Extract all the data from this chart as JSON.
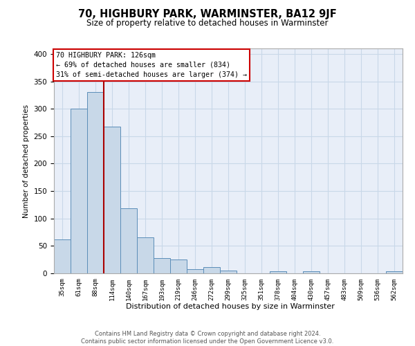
{
  "title1": "70, HIGHBURY PARK, WARMINSTER, BA12 9JF",
  "title2": "Size of property relative to detached houses in Warminster",
  "xlabel": "Distribution of detached houses by size in Warminster",
  "ylabel": "Number of detached properties",
  "bin_labels": [
    "35sqm",
    "61sqm",
    "88sqm",
    "114sqm",
    "140sqm",
    "167sqm",
    "193sqm",
    "219sqm",
    "246sqm",
    "272sqm",
    "299sqm",
    "325sqm",
    "351sqm",
    "378sqm",
    "404sqm",
    "430sqm",
    "457sqm",
    "483sqm",
    "509sqm",
    "536sqm",
    "562sqm"
  ],
  "bar_values": [
    62,
    300,
    330,
    268,
    118,
    65,
    28,
    25,
    8,
    11,
    5,
    0,
    0,
    4,
    0,
    4,
    0,
    0,
    0,
    0,
    4
  ],
  "bar_color": "#c8d8e8",
  "bar_edge_color": "#5b8db8",
  "vline_x": 2.5,
  "vline_color": "#aa0000",
  "annotation_text_line1": "70 HIGHBURY PARK: 126sqm",
  "annotation_text_line2": "← 69% of detached houses are smaller (834)",
  "annotation_text_line3": "31% of semi-detached houses are larger (374) →",
  "annotation_box_edge_color": "#cc0000",
  "ylim": [
    0,
    410
  ],
  "yticks": [
    0,
    50,
    100,
    150,
    200,
    250,
    300,
    350,
    400
  ],
  "grid_color": "#c8d8e8",
  "bg_color": "#e8eef8",
  "footer1": "Contains HM Land Registry data © Crown copyright and database right 2024.",
  "footer2": "Contains public sector information licensed under the Open Government Licence v3.0."
}
